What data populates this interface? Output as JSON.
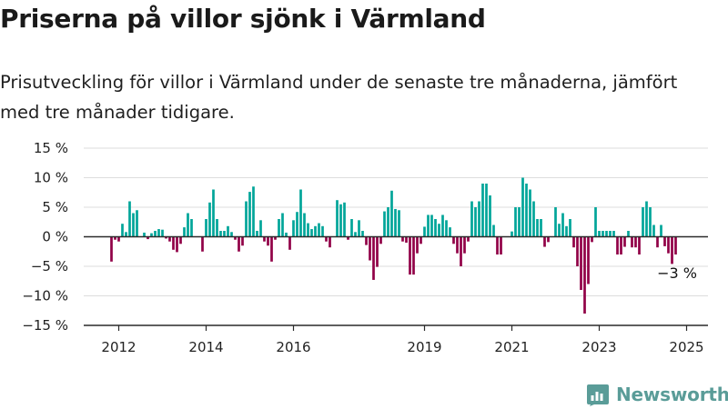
{
  "title": "Priserna på villor sjönk i Värmland",
  "subtitle": "Prisutveckling för villor i Värmland under de senaste tre månaderna, jämfört med tre månader tidigare.",
  "brand": {
    "name": "Newsworthy",
    "color": "#5a9c98"
  },
  "chart_data": {
    "type": "bar",
    "ylim": [
      -15,
      15
    ],
    "yticks": [
      15,
      10,
      5,
      0,
      -5,
      -10,
      -15
    ],
    "ytick_labels": [
      "15 %",
      "10 %",
      "5 %",
      "0 %",
      "−5 %",
      "−10 %",
      "−15 %"
    ],
    "x_start_year": 2011,
    "x_start_month": 11,
    "xticks": [
      2012,
      2014,
      2016,
      2019,
      2021,
      2023,
      2025
    ],
    "positive_color": "#00a599",
    "negative_color": "#910046",
    "values": [
      -4.2,
      -0.5,
      -0.8,
      2.2,
      0.8,
      6.0,
      4.0,
      4.5,
      null,
      0.7,
      -0.4,
      0.6,
      1.0,
      1.3,
      1.2,
      -0.3,
      -0.8,
      -2.2,
      -2.6,
      -1.2,
      1.6,
      4.0,
      3.0,
      null,
      null,
      -2.5,
      3.0,
      5.8,
      8.0,
      3.0,
      1.0,
      1.0,
      1.8,
      0.8,
      -0.5,
      -2.5,
      -1.5,
      6.0,
      7.6,
      8.5,
      1.0,
      2.8,
      -0.8,
      -1.5,
      -4.2,
      -0.5,
      3.0,
      4.0,
      0.7,
      -2.2,
      2.8,
      4.2,
      8.0,
      4.0,
      2.3,
      1.3,
      1.8,
      2.3,
      1.8,
      -0.8,
      -1.8,
      null,
      6.2,
      5.5,
      5.8,
      -0.5,
      3.0,
      0.8,
      2.8,
      1.0,
      -1.4,
      -4.0,
      -7.3,
      -5.1,
      -1.2,
      4.3,
      5.0,
      7.8,
      4.7,
      4.5,
      -0.8,
      -1.0,
      -6.4,
      -6.4,
      -2.8,
      -1.2,
      1.7,
      3.7,
      3.7,
      3.0,
      2.2,
      3.7,
      2.8,
      1.6,
      -1.2,
      -2.8,
      -5.0,
      -2.8,
      -0.8,
      6.0,
      5.0,
      6.0,
      9.0,
      9.0,
      7.0,
      2.0,
      -3.0,
      -3.0,
      null,
      null,
      0.9,
      5.0,
      5.0,
      10.0,
      9.0,
      8.0,
      6.0,
      3.0,
      3.0,
      -1.7,
      -0.9,
      null,
      5.0,
      2.2,
      4.0,
      1.8,
      3.0,
      -1.8,
      -5.0,
      -9.0,
      -13.0,
      -8.0,
      -0.9,
      5.0,
      1.0,
      1.0,
      1.0,
      1.0,
      1.0,
      -3.0,
      -3.0,
      -1.7,
      1.0,
      -1.8,
      -1.8,
      -3.0,
      5.0,
      6.0,
      5.0,
      2.0,
      -1.8,
      2.0,
      -1.6,
      -2.8,
      -4.6,
      -3.0
    ],
    "annotation": {
      "text": "−3 %"
    }
  }
}
